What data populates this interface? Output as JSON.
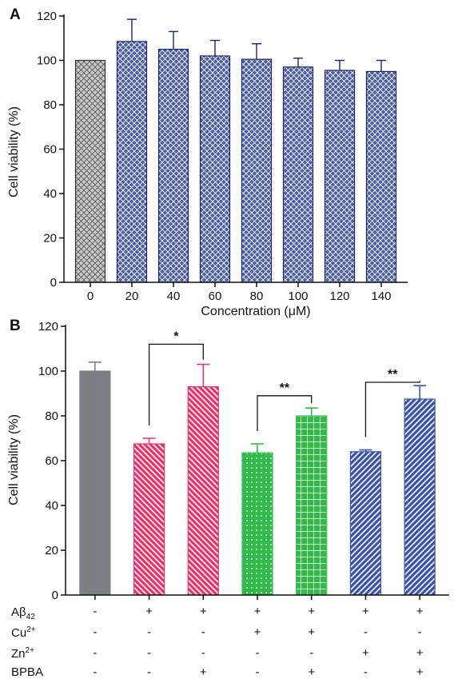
{
  "chart_data": [
    {
      "type": "bar",
      "panel_label": "A",
      "categories": [
        "0",
        "20",
        "40",
        "60",
        "80",
        "100",
        "120",
        "140"
      ],
      "values": [
        100,
        108.5,
        105,
        102,
        100.5,
        97,
        95.5,
        95
      ],
      "errors": [
        0,
        10,
        8,
        7,
        7,
        4,
        4.5,
        5
      ],
      "xlabel": "Concentration (μM)",
      "ylabel": "Cell viability (%)",
      "ylim": [
        0,
        120
      ],
      "yticks": [
        "0",
        "20",
        "40",
        "60",
        "80",
        "100",
        "120"
      ],
      "bar_colors": [
        "#c8c8c8",
        "#4a5bb0",
        "#4a5bb0",
        "#4a5bb0",
        "#4a5bb0",
        "#4a5bb0",
        "#4a5bb0",
        "#4a5bb0"
      ],
      "pattern": "crosshatch",
      "grid": false,
      "legend": "none"
    },
    {
      "type": "bar",
      "panel_label": "B",
      "values": [
        100,
        67.5,
        93,
        63.5,
        80,
        64,
        87.5
      ],
      "errors": [
        4,
        2.5,
        10,
        4,
        3.5,
        0.8,
        6
      ],
      "ylabel": "Cell viability (%)",
      "ylim": [
        0,
        120
      ],
      "yticks": [
        "0",
        "20",
        "40",
        "60",
        "80",
        "100",
        "120"
      ],
      "bar_colors": [
        "#7d7f84",
        "#e8356d",
        "#e8356d",
        "#33b84a",
        "#33b84a",
        "#3d55a8",
        "#3d55a8"
      ],
      "bar_patterns": [
        "solid",
        "diag-down",
        "diag-down",
        "dots",
        "grid",
        "diag-up",
        "diag-up"
      ],
      "treatment_rows": [
        {
          "name": "Aβ42",
          "symbols": [
            "-",
            "+",
            "+",
            "+",
            "+",
            "+",
            "+"
          ]
        },
        {
          "name": "Cu2+",
          "symbols": [
            "-",
            "-",
            "-",
            "+",
            "+",
            "-",
            "-"
          ]
        },
        {
          "name": "Zn2+",
          "symbols": [
            "-",
            "-",
            "-",
            "-",
            "-",
            "+",
            "+"
          ]
        },
        {
          "name": "BPBA",
          "symbols": [
            "-",
            "-",
            "+",
            "-",
            "+",
            "-",
            "+"
          ]
        }
      ],
      "row_labels": {
        "abeta_base": "Aβ",
        "abeta_sub": "42",
        "cu_base": "Cu",
        "cu_sup": "2+",
        "zn_base": "Zn",
        "zn_sup": "2+",
        "bpba": "BPBA"
      },
      "significance": [
        {
          "from": 1,
          "to": 2,
          "label": "*",
          "level": 112
        },
        {
          "from": 3,
          "to": 4,
          "label": "**",
          "level": 89
        },
        {
          "from": 5,
          "to": 6,
          "label": "**",
          "level": 95
        }
      ],
      "grid": false,
      "legend": "none"
    }
  ]
}
